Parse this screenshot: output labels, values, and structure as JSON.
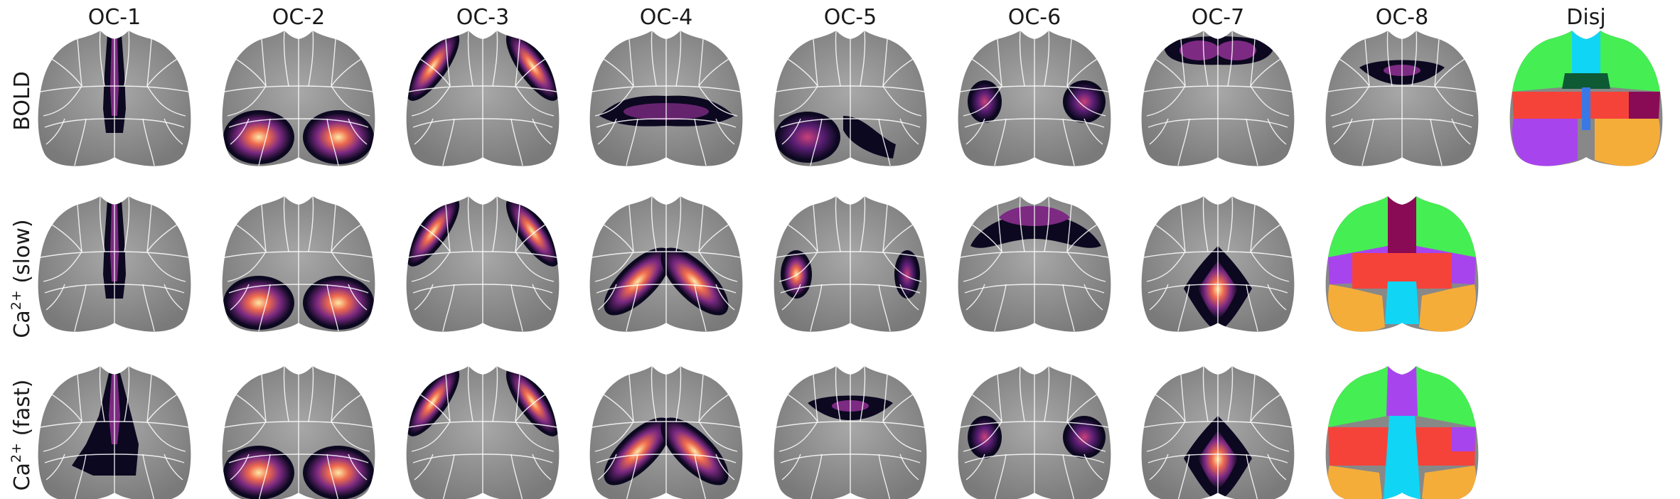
{
  "columns": [
    "OC-1",
    "OC-2",
    "OC-3",
    "OC-4",
    "OC-5",
    "OC-6",
    "OC-7",
    "OC-8",
    "Disj"
  ],
  "rows": [
    {
      "main": "BOLD",
      "sup": "",
      "suffix": ""
    },
    {
      "main": "Ca",
      "sup": "2+",
      "suffix": " (slow)"
    },
    {
      "main": "Ca",
      "sup": "2+",
      "suffix": " (fast)"
    }
  ],
  "colors": {
    "cortex_gray": "#8c8c8c",
    "outline": "#ffffff",
    "heat_dark": "#0c0820",
    "heat_mid": "#7c2a82",
    "heat_hot": "#ef6a4e",
    "heat_bright": "#fde9a6",
    "disj_green": "#45ee53",
    "disj_cyan": "#11d5f5",
    "disj_red": "#f5433a",
    "disj_purple": "#a844ee",
    "disj_orange": "#f5ad3a",
    "disj_darkgreen": "#0d5a34",
    "disj_maroon": "#8a0b55",
    "disj_blue": "#3a78e6"
  },
  "maps": [
    [
      "midline",
      "posterior-blobs",
      "lateral-anterior",
      "mid-band",
      "left-posterior",
      "lateral-mid",
      "anterior",
      "anterior-small",
      "disj-bold"
    ],
    [
      "midline",
      "posterior-blobs",
      "lateral-anterior",
      "mid-v",
      "lateral-small",
      "anterior-mid",
      "posterior-v",
      "disj-slow",
      "none"
    ],
    [
      "midline-wide",
      "posterior-blobs",
      "lateral-anterior",
      "mid-v",
      "anterior-small",
      "lateral-mid",
      "posterior-v",
      "disj-fast",
      "none"
    ]
  ]
}
